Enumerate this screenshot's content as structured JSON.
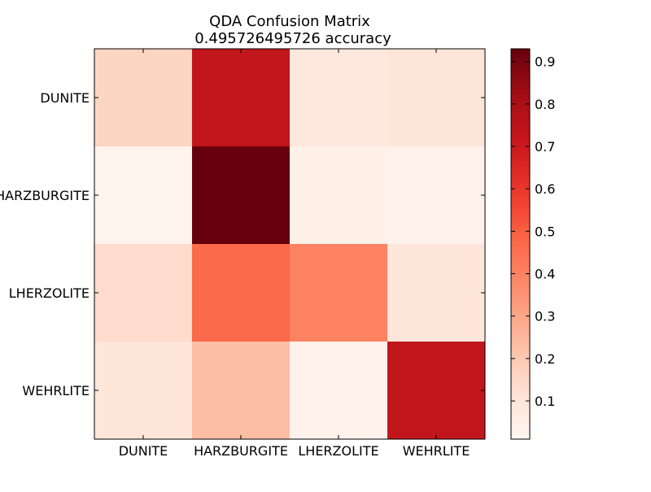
{
  "chart_data": {
    "type": "heatmap",
    "title": "QDA Confusion Matrix",
    "subtitle": "0.495726495726 accuracy",
    "xlabel": "",
    "ylabel": "",
    "x_categories": [
      "DUNITE",
      "HARZBURGITE",
      "LHERZOLITE",
      "WEHRLITE"
    ],
    "y_categories": [
      "DUNITE",
      "HARZBURGITE",
      "LHERZOLITE",
      "WEHRLITE"
    ],
    "values": [
      [
        0.16,
        0.73,
        0.08,
        0.1
      ],
      [
        0.02,
        0.93,
        0.04,
        0.03
      ],
      [
        0.14,
        0.47,
        0.4,
        0.09
      ],
      [
        0.09,
        0.23,
        0.03,
        0.73
      ]
    ],
    "colormap": "Reds",
    "colorbar": {
      "min": 0.01,
      "max": 0.93,
      "ticks": [
        0.1,
        0.2,
        0.3,
        0.4,
        0.5,
        0.6,
        0.7,
        0.8,
        0.9
      ],
      "tick_labels": [
        "0.1",
        "0.2",
        "0.3",
        "0.4",
        "0.5",
        "0.6",
        "0.7",
        "0.8",
        "0.9"
      ]
    },
    "grid": false,
    "legend": "colorbar-right"
  }
}
